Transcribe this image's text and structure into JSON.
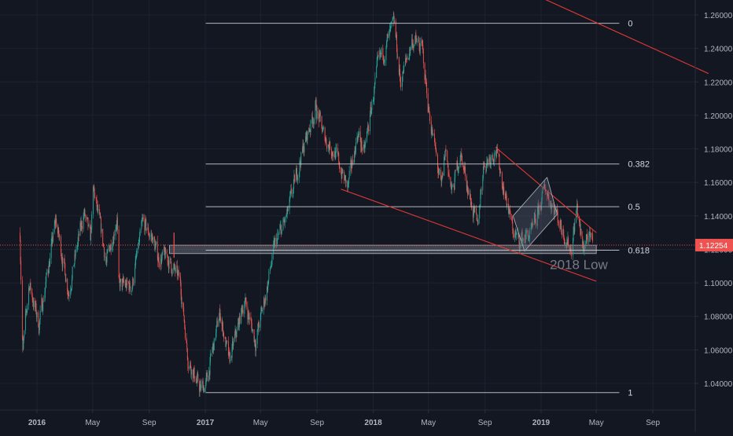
{
  "colors": {
    "background": "#131722",
    "grid": "#1e2230",
    "up": "#26a69a",
    "down": "#ef5350",
    "fib": "#d1d4dc",
    "trend": "#e53935",
    "price_badge": "#ef5350",
    "axis_text": "#b2b5be",
    "annotation": "#787b86",
    "channel_fill": "#5d6378"
  },
  "chart_data": {
    "type": "candlestick",
    "instrument_quote": "1.12254",
    "y_ticks": [
      "1.26000",
      "1.24000",
      "1.22000",
      "1.20000",
      "1.18000",
      "1.16000",
      "1.14000",
      "1.12000",
      "1.10000",
      "1.08000",
      "1.06000",
      "1.04000"
    ],
    "y_tick_values": [
      1.26,
      1.24,
      1.22,
      1.2,
      1.18,
      1.16,
      1.14,
      1.12,
      1.1,
      1.08,
      1.06,
      1.04
    ],
    "ylim": [
      1.027,
      1.275
    ],
    "x_ticks": [
      "2016",
      "May",
      "Sep",
      "2017",
      "May",
      "Sep",
      "2018",
      "May",
      "Sep",
      "2019",
      "May",
      "Sep"
    ],
    "x_tick_dates": [
      "2016-01-01",
      "2016-05-01",
      "2016-09-01",
      "2017-01-01",
      "2017-05-01",
      "2017-09-01",
      "2018-01-01",
      "2018-05-01",
      "2018-09-01",
      "2019-01-01",
      "2019-05-01",
      "2019-09-01"
    ],
    "bold_ticks": [
      "2016",
      "2017",
      "2018",
      "2019"
    ],
    "last_price": 1.12254,
    "price_path": [
      [
        "2015-11-25",
        1.13
      ],
      [
        "2015-12-01",
        1.058
      ],
      [
        "2015-12-15",
        1.1
      ],
      [
        "2016-01-05",
        1.075
      ],
      [
        "2016-02-11",
        1.137
      ],
      [
        "2016-03-10",
        1.095
      ],
      [
        "2016-04-12",
        1.142
      ],
      [
        "2016-04-26",
        1.125
      ],
      [
        "2016-05-03",
        1.155
      ],
      [
        "2016-05-31",
        1.112
      ],
      [
        "2016-06-23",
        1.14
      ],
      [
        "2016-06-27",
        1.098
      ],
      [
        "2016-07-25",
        1.098
      ],
      [
        "2016-08-18",
        1.135
      ],
      [
        "2016-09-08",
        1.127
      ],
      [
        "2016-09-20",
        1.115
      ],
      [
        "2016-10-10",
        1.115
      ],
      [
        "2016-11-08",
        1.1
      ],
      [
        "2016-11-24",
        1.056
      ],
      [
        "2016-12-20",
        1.036
      ],
      [
        "2017-01-03",
        1.04
      ],
      [
        "2017-02-02",
        1.082
      ],
      [
        "2017-02-22",
        1.052
      ],
      [
        "2017-03-27",
        1.09
      ],
      [
        "2017-04-20",
        1.065
      ],
      [
        "2017-05-10",
        1.09
      ],
      [
        "2017-06-01",
        1.122
      ],
      [
        "2017-06-28",
        1.14
      ],
      [
        "2017-07-27",
        1.175
      ],
      [
        "2017-08-29",
        1.205
      ],
      [
        "2017-09-15",
        1.188
      ],
      [
        "2017-10-09",
        1.178
      ],
      [
        "2017-11-07",
        1.156
      ],
      [
        "2017-11-28",
        1.19
      ],
      [
        "2017-12-12",
        1.177
      ],
      [
        "2018-01-12",
        1.23
      ],
      [
        "2018-02-16",
        1.254
      ],
      [
        "2018-03-01",
        1.22
      ],
      [
        "2018-03-27",
        1.245
      ],
      [
        "2018-04-17",
        1.24
      ],
      [
        "2018-05-01",
        1.205
      ],
      [
        "2018-05-29",
        1.155
      ],
      [
        "2018-06-07",
        1.18
      ],
      [
        "2018-06-21",
        1.153
      ],
      [
        "2018-07-09",
        1.178
      ],
      [
        "2018-08-15",
        1.132
      ],
      [
        "2018-08-28",
        1.17
      ],
      [
        "2018-09-24",
        1.18
      ],
      [
        "2018-10-31",
        1.132
      ],
      [
        "2018-11-12",
        1.125
      ],
      [
        "2018-12-14",
        1.13
      ],
      [
        "2019-01-10",
        1.157
      ],
      [
        "2019-02-05",
        1.14
      ],
      [
        "2019-03-07",
        1.12
      ],
      [
        "2019-03-20",
        1.145
      ],
      [
        "2019-04-01",
        1.12
      ],
      [
        "2019-04-10",
        1.128
      ],
      [
        "2019-04-23",
        1.122
      ]
    ],
    "fibonacci": {
      "levels": [
        {
          "label": "0",
          "price": 1.255
        },
        {
          "label": "0.382",
          "price": 1.171
        },
        {
          "label": "0.5",
          "price": 1.1455
        },
        {
          "label": "0.618",
          "price": 1.1195
        },
        {
          "label": "1",
          "price": 1.0345
        }
      ],
      "start_date": "2017-01-02",
      "end_date": "2019-06-20"
    },
    "trendlines": [
      {
        "from": [
          "2018-02-01",
          1.312
        ],
        "to": [
          "2019-12-31",
          1.225
        ]
      },
      {
        "from": [
          "2017-10-23",
          1.156
        ],
        "to": [
          "2019-05-01",
          1.101
        ]
      },
      {
        "from": [
          "2018-09-24",
          1.181
        ],
        "to": [
          "2019-05-01",
          1.13
        ]
      }
    ],
    "support_zone": {
      "from_date": "2016-10-15",
      "to_date": "2019-05-01",
      "low": 1.1175,
      "high": 1.1225
    },
    "bar_marker": {
      "date": "2016-10-25",
      "low": 1.115,
      "high": 1.13
    },
    "channel": {
      "corners": [
        [
          "2018-11-01",
          1.14
        ],
        [
          "2019-01-14",
          1.163
        ],
        [
          "2019-02-05",
          1.141
        ],
        [
          "2018-11-26",
          1.119
        ]
      ],
      "lines": [
        {
          "from": [
            "2018-11-01",
            1.14
          ],
          "to": [
            "2019-01-14",
            1.163
          ]
        },
        {
          "from": [
            "2018-11-26",
            1.119
          ],
          "to": [
            "2019-02-05",
            1.141
          ]
        },
        {
          "from": [
            "2019-01-14",
            1.163
          ],
          "to": [
            "2019-02-05",
            1.141
          ]
        },
        {
          "from": [
            "2018-11-01",
            1.14
          ],
          "to": [
            "2018-11-26",
            1.119
          ]
        }
      ]
    },
    "annotations": [
      {
        "text": "2018 Low",
        "date": "2019-01-20",
        "price": 1.112
      }
    ],
    "xlabel": "",
    "ylabel": "",
    "grid": true
  }
}
